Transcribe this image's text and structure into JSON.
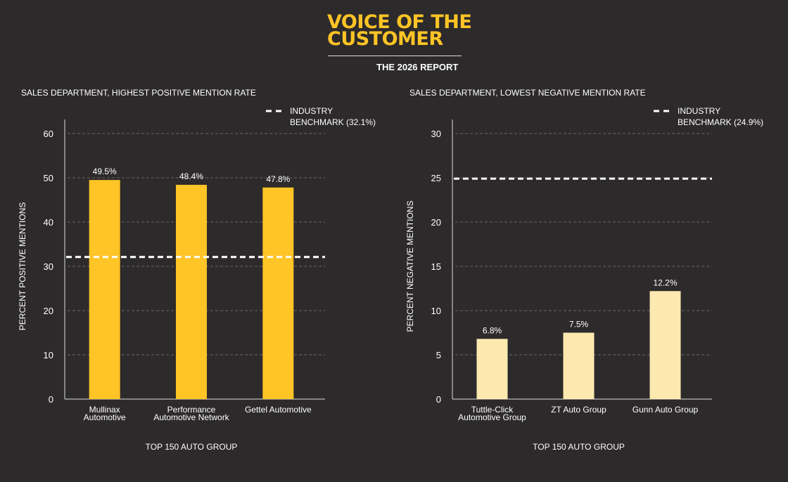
{
  "header": {
    "title_line1": "VOICE OF THE",
    "title_line2": "CUSTOMER",
    "subtitle": "THE 2026 REPORT"
  },
  "colors": {
    "background": "#2d2a2b",
    "brand": "#ffc425",
    "bar_positive": "#ffc425",
    "bar_negative": "#fde9b0",
    "benchmark": "#ffffff",
    "grid": "#6a6667"
  },
  "chart_data": [
    {
      "type": "bar",
      "title": "SALES DEPARTMENT, HIGHEST POSITIVE MENTION RATE",
      "xlabel": "TOP 150 AUTO GROUP",
      "ylabel": "PERCENT POSITIVE MENTIONS",
      "categories": [
        [
          "Mullinax",
          "Automotive"
        ],
        [
          "Performance",
          "Automotive Network"
        ],
        [
          "Gettel Automotive"
        ]
      ],
      "values": [
        49.5,
        48.4,
        47.8
      ],
      "data_labels": [
        "49.5%",
        "48.4%",
        "47.8%"
      ],
      "ylim": [
        0,
        60
      ],
      "yticks": [
        0,
        10,
        20,
        30,
        40,
        50,
        60
      ],
      "grid": true,
      "benchmark": {
        "value": 32.1,
        "label_line1": "INDUSTRY",
        "label_line2": "BENCHMARK (32.1%)",
        "style": "dashed"
      },
      "legend_position": "top-right"
    },
    {
      "type": "bar",
      "title": "SALES DEPARTMENT, LOWEST NEGATIVE MENTION RATE",
      "xlabel": "TOP 150 AUTO GROUP",
      "ylabel": "PERCENT NEGATIVE MENTIONS",
      "categories": [
        [
          "Tuttle-Click",
          "Automotive Group"
        ],
        [
          "ZT Auto Group"
        ],
        [
          "Gunn Auto Group"
        ]
      ],
      "values": [
        6.8,
        7.5,
        12.2
      ],
      "data_labels": [
        "6.8%",
        "7.5%",
        "12.2%"
      ],
      "ylim": [
        0,
        30
      ],
      "yticks": [
        0,
        5,
        10,
        15,
        20,
        25,
        30
      ],
      "grid": true,
      "benchmark": {
        "value": 24.9,
        "label_line1": "INDUSTRY",
        "label_line2": "BENCHMARK (24.9%)",
        "style": "dashed"
      },
      "legend_position": "top-right"
    }
  ]
}
